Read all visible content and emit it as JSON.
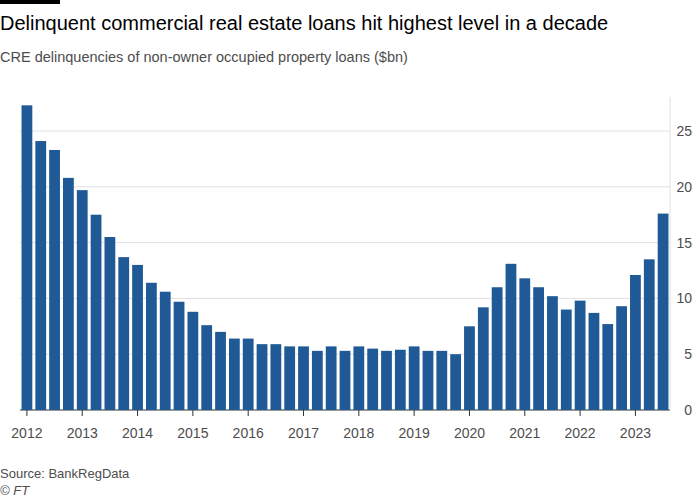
{
  "chart_data": {
    "type": "bar",
    "title": "Delinquent commercial real estate loans hit highest level in a decade",
    "subtitle": "CRE delinquencies of non-owner occupied property loans ($bn)",
    "source": "Source: BankRegData",
    "credit": "© FT",
    "categories": [
      "2012",
      null,
      null,
      null,
      "2013",
      null,
      null,
      null,
      "2014",
      null,
      null,
      null,
      "2015",
      null,
      null,
      null,
      "2016",
      null,
      null,
      null,
      "2017",
      null,
      null,
      null,
      "2018",
      null,
      null,
      null,
      "2019",
      null,
      null,
      null,
      "2020",
      null,
      null,
      null,
      "2021",
      null,
      null,
      null,
      "2022",
      null,
      null,
      null,
      "2023",
      null,
      null
    ],
    "values": [
      27.3,
      24.1,
      23.3,
      20.8,
      19.7,
      17.5,
      15.5,
      13.7,
      13.0,
      11.4,
      10.6,
      9.7,
      8.8,
      7.6,
      7.0,
      6.4,
      6.4,
      5.9,
      5.9,
      5.7,
      5.7,
      5.3,
      5.7,
      5.3,
      5.7,
      5.5,
      5.3,
      5.4,
      5.7,
      5.3,
      5.3,
      5.0,
      7.5,
      9.2,
      11.0,
      13.1,
      11.8,
      11.0,
      10.2,
      9.0,
      9.8,
      8.7,
      7.7,
      9.3,
      12.1,
      13.5,
      17.6
    ],
    "color": "#1f5a96",
    "ylim": [
      0,
      28
    ],
    "yticks": [
      0,
      5,
      10,
      15,
      20,
      25
    ],
    "grid": true
  }
}
